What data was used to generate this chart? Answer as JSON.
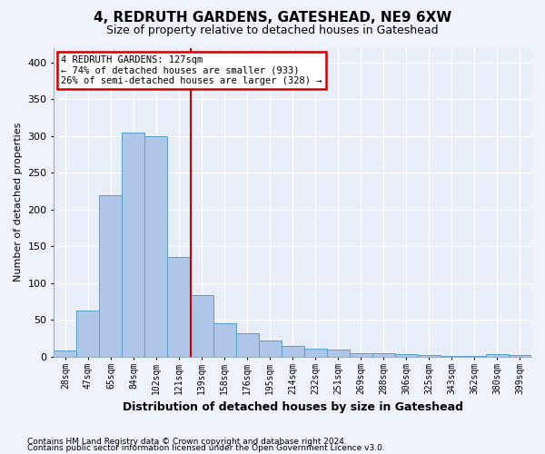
{
  "title": "4, REDRUTH GARDENS, GATESHEAD, NE9 6XW",
  "subtitle": "Size of property relative to detached houses in Gateshead",
  "xlabel": "Distribution of detached houses by size in Gateshead",
  "ylabel": "Number of detached properties",
  "categories": [
    "28sqm",
    "47sqm",
    "65sqm",
    "84sqm",
    "102sqm",
    "121sqm",
    "139sqm",
    "158sqm",
    "176sqm",
    "195sqm",
    "214sqm",
    "232sqm",
    "251sqm",
    "269sqm",
    "288sqm",
    "306sqm",
    "325sqm",
    "343sqm",
    "362sqm",
    "380sqm",
    "399sqm"
  ],
  "values": [
    9,
    63,
    220,
    305,
    300,
    135,
    84,
    46,
    32,
    22,
    15,
    11,
    10,
    5,
    5,
    3,
    2,
    1,
    1,
    3,
    2
  ],
  "bar_color": "#aec6e8",
  "bar_edge_color": "#5a9fc8",
  "vline_x": 5.5,
  "vline_color": "#cc0000",
  "annotation_title": "4 REDRUTH GARDENS: 127sqm",
  "annotation_line1": "← 74% of detached houses are smaller (933)",
  "annotation_line2": "26% of semi-detached houses are larger (328) →",
  "annotation_box_color": "#cc0000",
  "ylim": [
    0,
    420
  ],
  "yticks": [
    0,
    50,
    100,
    150,
    200,
    250,
    300,
    350,
    400
  ],
  "footer1": "Contains HM Land Registry data © Crown copyright and database right 2024.",
  "footer2": "Contains public sector information licensed under the Open Government Licence v3.0.",
  "bg_color": "#eef2fb",
  "plot_bg_color": "#e8eef8"
}
